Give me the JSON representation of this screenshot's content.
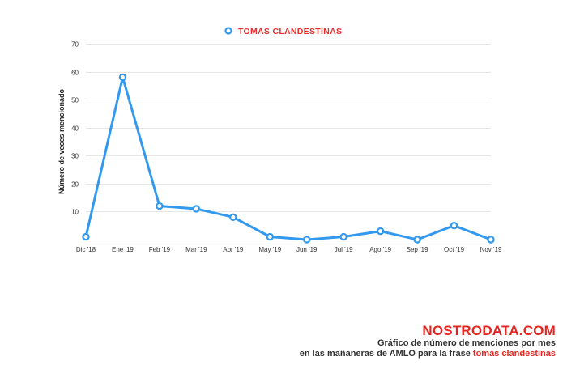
{
  "colors": {
    "series": "#3399ee",
    "legend_text": "#e62e2e",
    "brand": "#e52521",
    "caption": "#333333",
    "grid": "#e6e6e6"
  },
  "chart_data": {
    "type": "line",
    "categories": [
      "Dic '18",
      "Ene '19",
      "Feb '19",
      "Mar '19",
      "Abr '19",
      "May '19",
      "Jun '19",
      "Jul '19",
      "Ago '19",
      "Sep '19",
      "Oct '19",
      "Nov '19"
    ],
    "series": [
      {
        "name": "TOMAS CLANDESTINAS",
        "values": [
          1,
          58,
          12,
          11,
          8,
          1,
          0,
          1,
          3,
          0,
          5,
          0
        ]
      }
    ],
    "title": "",
    "xlabel": "",
    "ylabel": "Número de veces mencionado",
    "ylim": [
      0,
      70
    ],
    "yticks": [
      10,
      20,
      30,
      40,
      50,
      60,
      70
    ],
    "grid": true,
    "legend_position": "top-center"
  },
  "footer": {
    "brand": "NOSTRODATA.COM",
    "caption_line1": "Gráfico de número de menciones por mes",
    "caption_line2_prefix": "en las mañaneras de AMLO para la frase ",
    "caption_line2_highlight": "tomas clandestinas"
  }
}
